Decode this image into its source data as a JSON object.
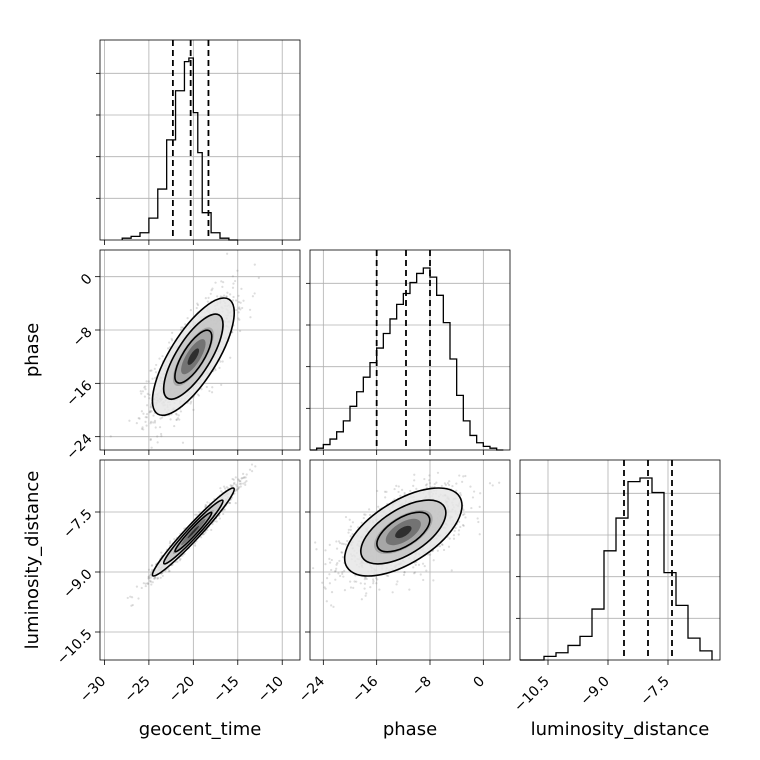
{
  "chart_data": {
    "type": "corner",
    "parameters": [
      "geocent_time",
      "phase",
      "luminosity_distance"
    ],
    "axis_labels": {
      "x": [
        "geocent_time",
        "phase",
        "luminosity_distance"
      ],
      "y": [
        "",
        "phase",
        "luminosity_distance"
      ]
    },
    "ranges": {
      "geocent_time": [
        -30.5,
        -8.0
      ],
      "phase": [
        -26.0,
        4.0
      ],
      "luminosity_distance": [
        -11.2,
        -6.2
      ]
    },
    "ticks": {
      "geocent_time": [
        -30,
        -25,
        -20,
        -15,
        -10
      ],
      "phase": [
        -24,
        -16,
        -8,
        0
      ],
      "luminosity_distance": [
        -10.5,
        -9.0,
        -7.5
      ]
    },
    "tick_labels": {
      "geocent_time": [
        "−30",
        "−25",
        "−20",
        "−15",
        "−10"
      ],
      "phase": [
        "−24",
        "−16",
        "−8",
        "0"
      ],
      "luminosity_distance": [
        "−10.5",
        "−9.0",
        "−7.5"
      ]
    },
    "histograms": {
      "geocent_time": {
        "bin_edges": [
          -28,
          -27,
          -26,
          -25,
          -24,
          -23,
          -22,
          -21,
          -20.5,
          -20,
          -19.5,
          -19,
          -18,
          -17,
          -16,
          -15
        ],
        "counts": [
          0.01,
          0.02,
          0.04,
          0.12,
          0.28,
          0.55,
          0.82,
          0.98,
          1.0,
          0.7,
          0.48,
          0.15,
          0.04,
          0.01,
          0.0
        ],
        "quantiles": [
          -22.3,
          -20.3,
          -18.3
        ]
      },
      "phase": {
        "bin_edges": [
          -26,
          -25,
          -24,
          -23,
          -22,
          -21,
          -20,
          -19,
          -18,
          -17,
          -16,
          -15,
          -14,
          -13,
          -12,
          -11,
          -10,
          -9,
          -8,
          -7,
          -6,
          -5,
          -4,
          -3,
          -2,
          -1,
          0,
          1,
          2,
          3
        ],
        "counts": [
          0.0,
          0.01,
          0.03,
          0.06,
          0.1,
          0.16,
          0.24,
          0.32,
          0.4,
          0.48,
          0.56,
          0.64,
          0.72,
          0.8,
          0.86,
          0.92,
          0.97,
          1.0,
          0.95,
          0.85,
          0.7,
          0.5,
          0.3,
          0.16,
          0.08,
          0.04,
          0.02,
          0.01,
          0.0
        ],
        "quantiles": [
          -16.0,
          -11.6,
          -8.0
        ]
      },
      "luminosity_distance": {
        "bin_edges": [
          -11.2,
          -10.6,
          -10.3,
          -10.0,
          -9.7,
          -9.4,
          -9.1,
          -8.8,
          -8.5,
          -8.2,
          -7.9,
          -7.6,
          -7.3,
          -7.0,
          -6.7,
          -6.4
        ],
        "counts": [
          0.0,
          0.02,
          0.04,
          0.08,
          0.13,
          0.28,
          0.6,
          0.78,
          0.98,
          1.0,
          0.92,
          0.48,
          0.3,
          0.12,
          0.05
        ],
        "quantiles": [
          -8.6,
          -8.0,
          -7.4
        ]
      }
    },
    "pairs": [
      {
        "x": "geocent_time",
        "y": "phase",
        "mean": [
          -20.0,
          -12.0
        ],
        "sd": [
          2.3,
          4.4
        ],
        "corr": 0.75
      },
      {
        "x": "geocent_time",
        "y": "luminosity_distance",
        "mean": [
          -20.0,
          -8.0
        ],
        "sd": [
          2.3,
          0.55
        ],
        "corr": 0.97
      },
      {
        "x": "phase",
        "y": "luminosity_distance",
        "mean": [
          -12.0,
          -8.0
        ],
        "sd": [
          4.4,
          0.55
        ],
        "corr": 0.6
      }
    ],
    "contour_levels": [
      "39.3%",
      "86.5%",
      "98.9%"
    ],
    "grid": true
  }
}
